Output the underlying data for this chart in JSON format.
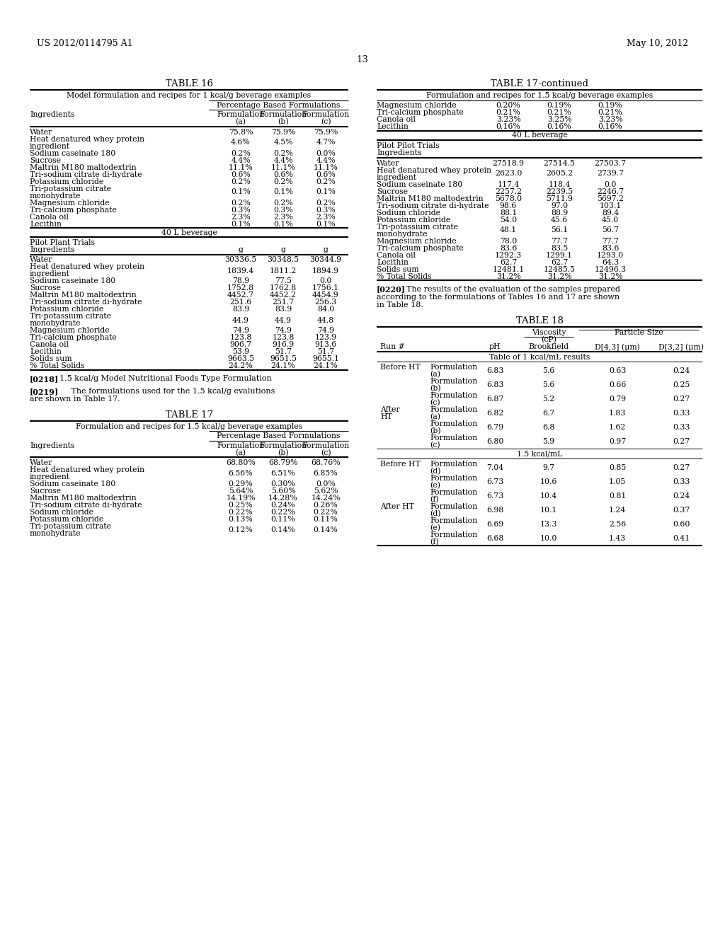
{
  "header_left": "US 2012/0114795 A1",
  "header_right": "May 10, 2012",
  "page_number": "13",
  "table16_title": "TABLE 16",
  "table16_subtitle": "Model formulation and recipes for 1 kcal/g beverage examples",
  "table16_group_header": "Percentage Based Formulations",
  "table16_pct_rows": [
    [
      "Water",
      "75.8%",
      "75.9%",
      "75.9%"
    ],
    [
      "Heat denatured whey protein\ningredient",
      "4.6%",
      "4.5%",
      "4.7%"
    ],
    [
      "Sodium caseinate 180",
      "0.2%",
      "0.2%",
      "0.0%"
    ],
    [
      "Sucrose",
      "4.4%",
      "4.4%",
      "4.4%"
    ],
    [
      "Maltrin M180 maltodextrin",
      "11.1%",
      "11.1%",
      "11.1%"
    ],
    [
      "Tri-sodium citrate di-hydrate",
      "0.6%",
      "0.6%",
      "0.6%"
    ],
    [
      "Potassium chloride",
      "0.2%",
      "0.2%",
      "0.2%"
    ],
    [
      "Tri-potassium citrate\nmonohydrate",
      "0.1%",
      "0.1%",
      "0.1%"
    ],
    [
      "Magnesium chloride",
      "0.2%",
      "0.2%",
      "0.2%"
    ],
    [
      "Tri-calcium phosphate",
      "0.3%",
      "0.3%",
      "0.3%"
    ],
    [
      "Canola oil",
      "2.3%",
      "2.3%",
      "2.3%"
    ],
    [
      "Lecithin",
      "0.1%",
      "0.1%",
      "0.1%"
    ]
  ],
  "table16_section2_header": "40 L beverage",
  "table16_g_rows": [
    [
      "Water",
      "30336.5",
      "30348.5",
      "30344.9"
    ],
    [
      "Heat denatured whey protein\ningredient",
      "1839.4",
      "1811.2",
      "1894.9"
    ],
    [
      "Sodium caseinate 180",
      "78.9",
      "77.5",
      "0.0"
    ],
    [
      "Sucrose",
      "1752.8",
      "1762.8",
      "1756.1"
    ],
    [
      "Maltrin M180 maltodextrin",
      "4452.7",
      "4452.2",
      "4454.9"
    ],
    [
      "Tri-sodium citrate di-hydrate",
      "251.6",
      "251.7",
      "256.3"
    ],
    [
      "Potassium chloride",
      "83.9",
      "83.9",
      "84.0"
    ],
    [
      "Tri-potassium citrate\nmonohydrate",
      "44.9",
      "44.9",
      "44.8"
    ],
    [
      "Magnesium chloride",
      "74.9",
      "74.9",
      "74.9"
    ],
    [
      "Tri-calcium phosphate",
      "123.8",
      "123.8",
      "123.9"
    ],
    [
      "Canola oil",
      "906.7",
      "916.9",
      "913.6"
    ],
    [
      "Lecithin",
      "53.9",
      "51.7",
      "51.7"
    ],
    [
      "Solids sum",
      "9663.5",
      "9651.5",
      "9655.1"
    ],
    [
      "% Total Solids",
      "24.2%",
      "24.1%",
      "24.1%"
    ]
  ],
  "para218_ref": "[0218]",
  "para218_text": "1.5 kcal/g Model Nutritional Foods Type Formulation",
  "para219_ref": "[0219]",
  "para219_text": "The formulations used for the 1.5 kcal/g evalutions\nare shown in Table 17.",
  "table17_title": "TABLE 17",
  "table17_subtitle": "Formulation and recipes for 1.5 kcal/g beverage examples",
  "table17_group_header": "Percentage Based Formulations",
  "table17_pct_rows": [
    [
      "Water",
      "68.80%",
      "68.79%",
      "68.76%"
    ],
    [
      "Heat denatured whey protein\ningredient",
      "6.56%",
      "6.51%",
      "6.85%"
    ],
    [
      "Sodium caseinate 180",
      "0.29%",
      "0.30%",
      "0.0%"
    ],
    [
      "Sucrose",
      "5.64%",
      "5.60%",
      "5.62%"
    ],
    [
      "Maltrin M180 maltodextrin",
      "14.19%",
      "14.28%",
      "14.24%"
    ],
    [
      "Tri-sodium citrate di-hydrate",
      "0.25%",
      "0.24%",
      "0.26%"
    ],
    [
      "Sodium chloride",
      "0.22%",
      "0.22%",
      "0.22%"
    ],
    [
      "Potassium chloride",
      "0.13%",
      "0.11%",
      "0.11%"
    ],
    [
      "Tri-potassium citrate\nmonohydrate",
      "0.12%",
      "0.14%",
      "0.14%"
    ]
  ],
  "table17cont_title": "TABLE 17-continued",
  "table17cont_subtitle": "Formulation and recipes for 1.5 kcal/g beverage examples",
  "table17cont_rows": [
    [
      "Magnesium chloride",
      "0.20%",
      "0.19%",
      "0.19%"
    ],
    [
      "Tri-calcium phosphate",
      "0.21%",
      "0.21%",
      "0.21%"
    ],
    [
      "Canola oil",
      "3.23%",
      "3.25%",
      "3.23%"
    ],
    [
      "Lecithin",
      "0.16%",
      "0.16%",
      "0.16%"
    ]
  ],
  "table17cont_section2_header": "40 L beverage",
  "table17cont_pilot_line1": "Pilot Pilot Trials",
  "table17cont_pilot_line2": "Ingredients",
  "table17cont_g_rows": [
    [
      "Water",
      "27518.9",
      "27514.5",
      "27503.7"
    ],
    [
      "Heat denatured whey protein\ningredient",
      "2623.0",
      "2605.2",
      "2739.7"
    ],
    [
      "Sodium caseinate 180",
      "117.4",
      "118.4",
      "0.0"
    ],
    [
      "Sucrose",
      "2257.2",
      "2239.5",
      "2246.7"
    ],
    [
      "Maltrin M180 maltodextrin",
      "5678.0",
      "5711.9",
      "5697.2"
    ],
    [
      "Tri-sodium citrate di-hydrate",
      "98.6",
      "97.0",
      "103.1"
    ],
    [
      "Sodium chloride",
      "88.1",
      "88.9",
      "89.4"
    ],
    [
      "Potassium chloride",
      "54.0",
      "45.6",
      "45.0"
    ],
    [
      "Tri-potassium citrate\nmonohydrate",
      "48.1",
      "56.1",
      "56.7"
    ],
    [
      "Magnesium chloride",
      "78.0",
      "77.7",
      "77.7"
    ],
    [
      "Tri-calcium phosphate",
      "83.6",
      "83.5",
      "83.6"
    ],
    [
      "Canola oil",
      "1292.3",
      "1299.1",
      "1293.0"
    ],
    [
      "Lecithin",
      "62.7",
      "62.7",
      "64.3"
    ],
    [
      "Solids sum",
      "12481.1",
      "12485.5",
      "12496.3"
    ],
    [
      "% Total Solids",
      "31.2%",
      "31.2%",
      "31.2%"
    ]
  ],
  "para220_ref": "[0220]",
  "para220_line1": "The results of the evaluation of the samples prepared",
  "para220_line2": "according to the formulations of Tables 16 and 17 are shown",
  "para220_line3": "in Table 18.",
  "table18_title": "TABLE 18",
  "table18_col_headers": [
    "Run #",
    "pH",
    "Brookfield",
    "D[4,3] (μm)",
    "D[3,2] (μm)"
  ],
  "table18_section1": "Table of 1 kcal/mL results",
  "table18_before_ht_rows": [
    [
      "Before HT",
      "Formulation\n(a)",
      "6.83",
      "5.6",
      "0.63",
      "0.24"
    ],
    [
      "",
      "Formulation\n(b)",
      "6.83",
      "5.6",
      "0.66",
      "0.25"
    ],
    [
      "",
      "Formulation\n(c)",
      "6.87",
      "5.2",
      "0.79",
      "0.27"
    ]
  ],
  "table18_after_ht_rows": [
    [
      "After\nHT",
      "Formulation\n(a)",
      "6.82",
      "6.7",
      "1.83",
      "0.33"
    ],
    [
      "",
      "Formulation\n(b)",
      "6.79",
      "6.8",
      "1.62",
      "0.33"
    ],
    [
      "",
      "Formulation\n(c)",
      "6.80",
      "5.9",
      "0.97",
      "0.27"
    ]
  ],
  "table18_section2": "1.5 kcal/mL",
  "table18_before_ht2_rows": [
    [
      "Before HT",
      "Formulation\n(d)",
      "7.04",
      "9.7",
      "0.85",
      "0.27"
    ],
    [
      "",
      "Formulation\n(e)",
      "6.73",
      "10.6",
      "1.05",
      "0.33"
    ],
    [
      "",
      "Formulation\n(f)",
      "6.73",
      "10.4",
      "0.81",
      "0.24"
    ]
  ],
  "table18_after_ht2_rows": [
    [
      "After HT",
      "Formulation\n(d)",
      "6.98",
      "10.1",
      "1.24",
      "0.37"
    ],
    [
      "",
      "Formulation\n(e)",
      "6.69",
      "13.3",
      "2.56",
      "0.60"
    ],
    [
      "",
      "Formulation\n(f)",
      "6.68",
      "10.0",
      "1.43",
      "0.41"
    ]
  ]
}
